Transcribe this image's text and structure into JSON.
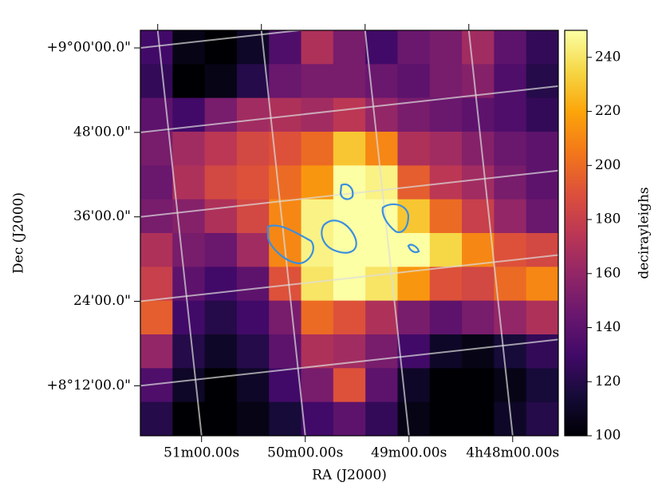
{
  "chart_data": {
    "type": "heatmap",
    "xlabel": "RA (J2000)",
    "ylabel": "Dec (J2000)",
    "colorbar_label": "decirayleighs",
    "xlim": [
      51.59,
      47.56
    ],
    "xticks": [
      {
        "value": 51,
        "label": "51m00.00s"
      },
      {
        "value": 50,
        "label": "50m00.00s"
      },
      {
        "value": 49,
        "label": "49m00.00s"
      },
      {
        "value": 48,
        "label": "4h48m00.00s"
      }
    ],
    "ylim": [
      484.9,
      542.5
    ],
    "yticks": [
      {
        "value": 540,
        "label": "+9°00'00.0\""
      },
      {
        "value": 528,
        "label": "48'00.0\""
      },
      {
        "value": 516,
        "label": "36'00.0\""
      },
      {
        "value": 504,
        "label": "24'00.0\""
      },
      {
        "value": 492,
        "label": "+8°12'00.0\""
      }
    ],
    "clim": [
      100,
      250
    ],
    "cticks": [
      100,
      120,
      140,
      160,
      180,
      200,
      220,
      240
    ],
    "grid": true,
    "values": [
      [
        130,
        105,
        100,
        110,
        135,
        170,
        150,
        130,
        145,
        150,
        165,
        140,
        125
      ],
      [
        125,
        100,
        105,
        120,
        145,
        150,
        150,
        145,
        140,
        150,
        155,
        135,
        120
      ],
      [
        140,
        130,
        150,
        165,
        170,
        165,
        175,
        160,
        150,
        145,
        140,
        135,
        125
      ],
      [
        150,
        165,
        175,
        185,
        190,
        200,
        230,
        210,
        170,
        165,
        155,
        145,
        140
      ],
      [
        145,
        170,
        185,
        190,
        200,
        215,
        250,
        245,
        195,
        175,
        165,
        150,
        140
      ],
      [
        150,
        155,
        170,
        185,
        210,
        245,
        250,
        250,
        230,
        200,
        180,
        160,
        145
      ],
      [
        170,
        150,
        145,
        165,
        210,
        245,
        250,
        250,
        250,
        235,
        210,
        190,
        185
      ],
      [
        180,
        140,
        130,
        140,
        190,
        240,
        250,
        240,
        215,
        190,
        185,
        200,
        210
      ],
      [
        195,
        130,
        120,
        130,
        150,
        200,
        190,
        170,
        150,
        140,
        150,
        160,
        170
      ],
      [
        160,
        120,
        110,
        120,
        140,
        170,
        165,
        150,
        130,
        110,
        105,
        115,
        125
      ],
      [
        135,
        110,
        100,
        110,
        130,
        150,
        190,
        140,
        110,
        100,
        100,
        105,
        115
      ],
      [
        120,
        100,
        100,
        105,
        115,
        130,
        140,
        125,
        105,
        100,
        100,
        110,
        120
      ]
    ]
  }
}
